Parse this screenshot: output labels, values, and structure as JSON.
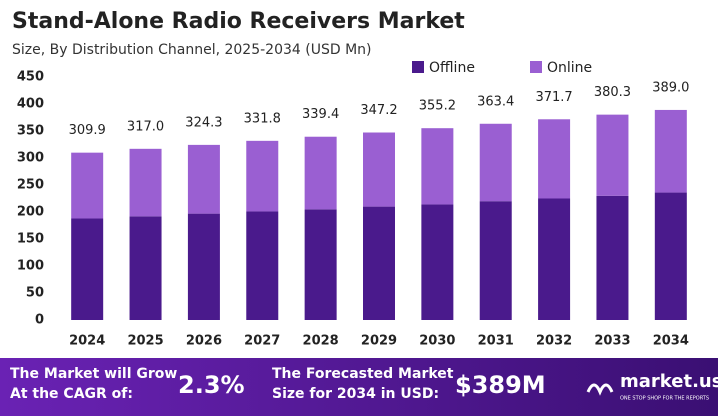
{
  "chart_data": {
    "type": "stacked-bar",
    "title": "Stand-Alone Radio Receivers Market",
    "subtitle": "Size, By Distribution Channel, 2025-2034 (USD Mn)",
    "categories": [
      "2024",
      "2025",
      "2026",
      "2027",
      "2028",
      "2029",
      "2030",
      "2031",
      "2032",
      "2033",
      "2034"
    ],
    "series": [
      {
        "name": "Offline",
        "color": "#4a1a8c",
        "values": [
          188,
          192,
          197,
          201,
          205,
          210,
          214,
          220,
          225,
          230,
          236
        ]
      },
      {
        "name": "Online",
        "color": "#9a5fd2",
        "values": [
          121.9,
          125.0,
          127.3,
          130.8,
          134.4,
          137.2,
          141.2,
          143.4,
          146.7,
          150.3,
          153.0
        ]
      }
    ],
    "totals": [
      309.9,
      {
        "value": 317,
        "label": "317.0"
      },
      324.3,
      331.8,
      339.4,
      347.2,
      355.2,
      363.4,
      371.7,
      380.3,
      {
        "value": 389,
        "label": "389.0"
      }
    ],
    "ylim": [
      0,
      450
    ],
    "yticks": [
      0,
      50,
      100,
      150,
      200,
      250,
      300,
      350,
      400,
      450
    ],
    "legend": "top-right"
  },
  "footer": {
    "cagr_text": "The Market will Grow At the CAGR of:",
    "cagr_value": "2.3%",
    "forecast_text": "The Forecasted Market Size for 2034 in USD:",
    "forecast_value": "$389M",
    "brand": "market.us",
    "tagline": "ONE STOP SHOP FOR THE REPORTS"
  }
}
